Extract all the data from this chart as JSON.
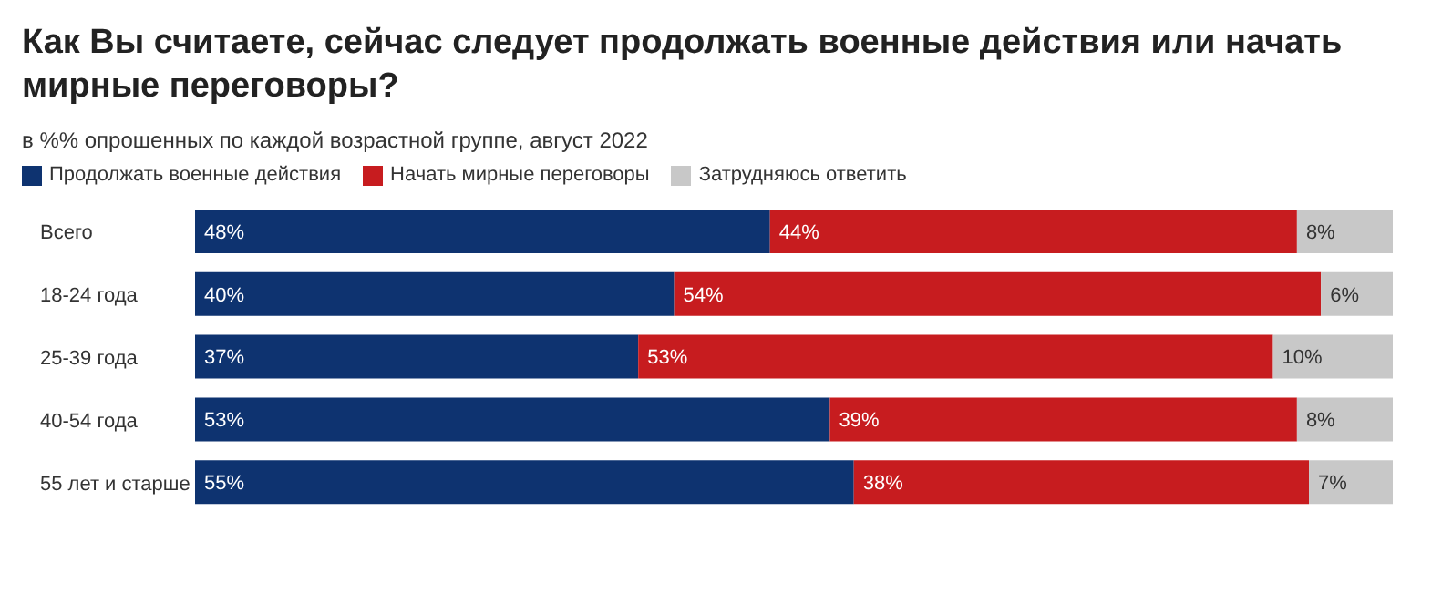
{
  "chart_data": {
    "type": "bar",
    "orientation": "horizontal",
    "stacked": true,
    "title": "Как Вы считаете, сейчас следует продолжать военные действия или начать мирные переговоры?",
    "subtitle": "в %% опрошенных по каждой возрастной группе, август 2022",
    "legend": "top left",
    "categories": [
      "Всего",
      "18-24 года",
      "25-39 года",
      "40-54 года",
      "55 лет и старше"
    ],
    "series": [
      {
        "name": "Продолжать военные действия",
        "color": "#0e3370",
        "values": [
          48,
          40,
          37,
          53,
          55
        ],
        "value_labels": [
          "48%",
          "40%",
          "37%",
          "53%",
          "55%"
        ]
      },
      {
        "name": "Начать мирные переговоры",
        "color": "#c71c1f",
        "values": [
          44,
          54,
          53,
          39,
          38
        ],
        "value_labels": [
          "44%",
          "54%",
          "53%",
          "39%",
          "38%"
        ]
      },
      {
        "name": "Затрудняюсь ответить",
        "color": "#c8c8c8",
        "values": [
          8,
          6,
          10,
          8,
          7
        ],
        "value_labels": [
          "8%",
          "6%",
          "10%",
          "8%",
          "7%"
        ]
      }
    ]
  }
}
